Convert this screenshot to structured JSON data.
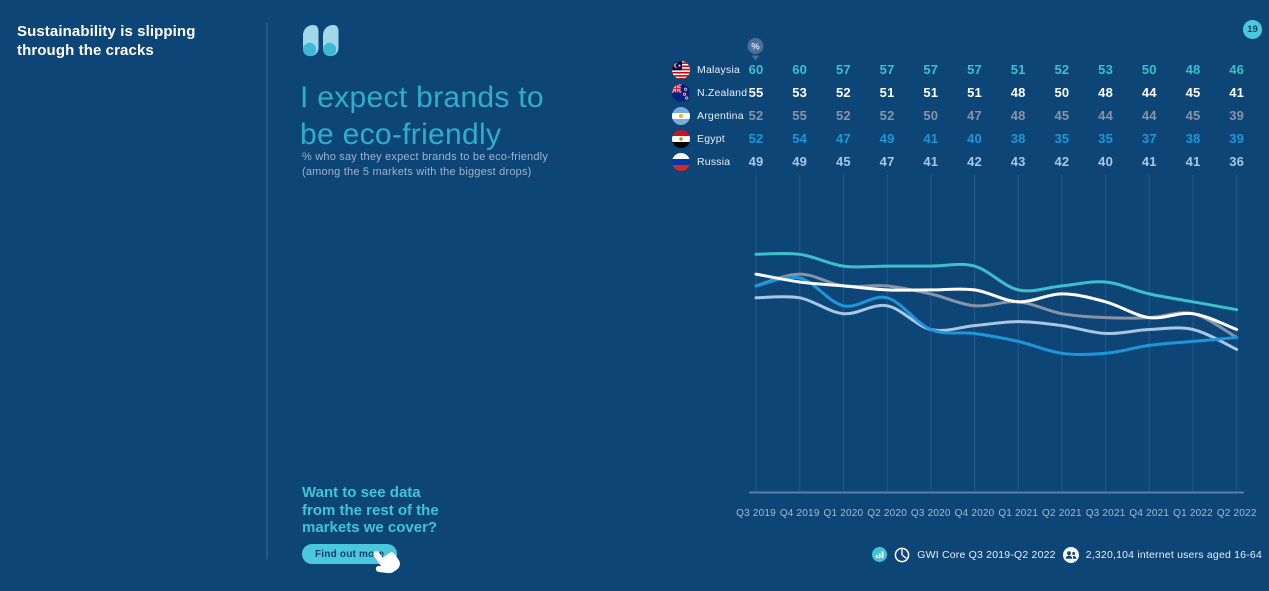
{
  "page": {
    "background": "#0E4577",
    "accent": "#4BC9DC",
    "page_number": "19"
  },
  "sidebar": {
    "title": "Sustainability is slipping\nthrough the cracks"
  },
  "main": {
    "headline": "I expect brands to\nbe eco-friendly",
    "subtitle": "% who say they expect brands to be eco-friendly\n(among the 5 markets with the biggest drops)",
    "cta_heading": "Want to see data\nfrom the rest of the\nmarkets we cover?",
    "cta_button": "Find out more"
  },
  "chart_data": {
    "type": "line",
    "title": "I expect brands to be eco-friendly",
    "unit_label": "%",
    "x": [
      "Q3 2019",
      "Q4 2019",
      "Q1 2020",
      "Q2 2020",
      "Q3 2020",
      "Q4 2020",
      "Q1 2021",
      "Q2 2021",
      "Q3 2021",
      "Q4 2021",
      "Q1 2022",
      "Q2 2022"
    ],
    "series": [
      {
        "name": "Malaysia",
        "color": "#3DC0CD",
        "values": [
          60,
          60,
          57,
          57,
          57,
          57,
          51,
          52,
          53,
          50,
          48,
          46
        ]
      },
      {
        "name": "N.Zealand",
        "color": "#FFFFFF",
        "values": [
          55,
          53,
          52,
          51,
          51,
          51,
          48,
          50,
          48,
          44,
          45,
          41
        ]
      },
      {
        "name": "Argentina",
        "color": "#8794A8",
        "values": [
          52,
          55,
          52,
          52,
          50,
          47,
          48,
          45,
          44,
          44,
          45,
          39
        ]
      },
      {
        "name": "Egypt",
        "color": "#1E96DA",
        "values": [
          52,
          54,
          47,
          49,
          41,
          40,
          38,
          35,
          35,
          37,
          38,
          39
        ]
      },
      {
        "name": "Russia",
        "color": "#A7C7E5",
        "values": [
          49,
          49,
          45,
          47,
          41,
          42,
          43,
          42,
          40,
          41,
          41,
          36
        ]
      }
    ],
    "ylim": [
      0,
      80
    ],
    "grid": "vertical",
    "legend_position": "table-left"
  },
  "footer": {
    "source": "GWI Core Q3 2019-Q2 2022",
    "sample": "2,320,104 internet users aged 16-64"
  }
}
